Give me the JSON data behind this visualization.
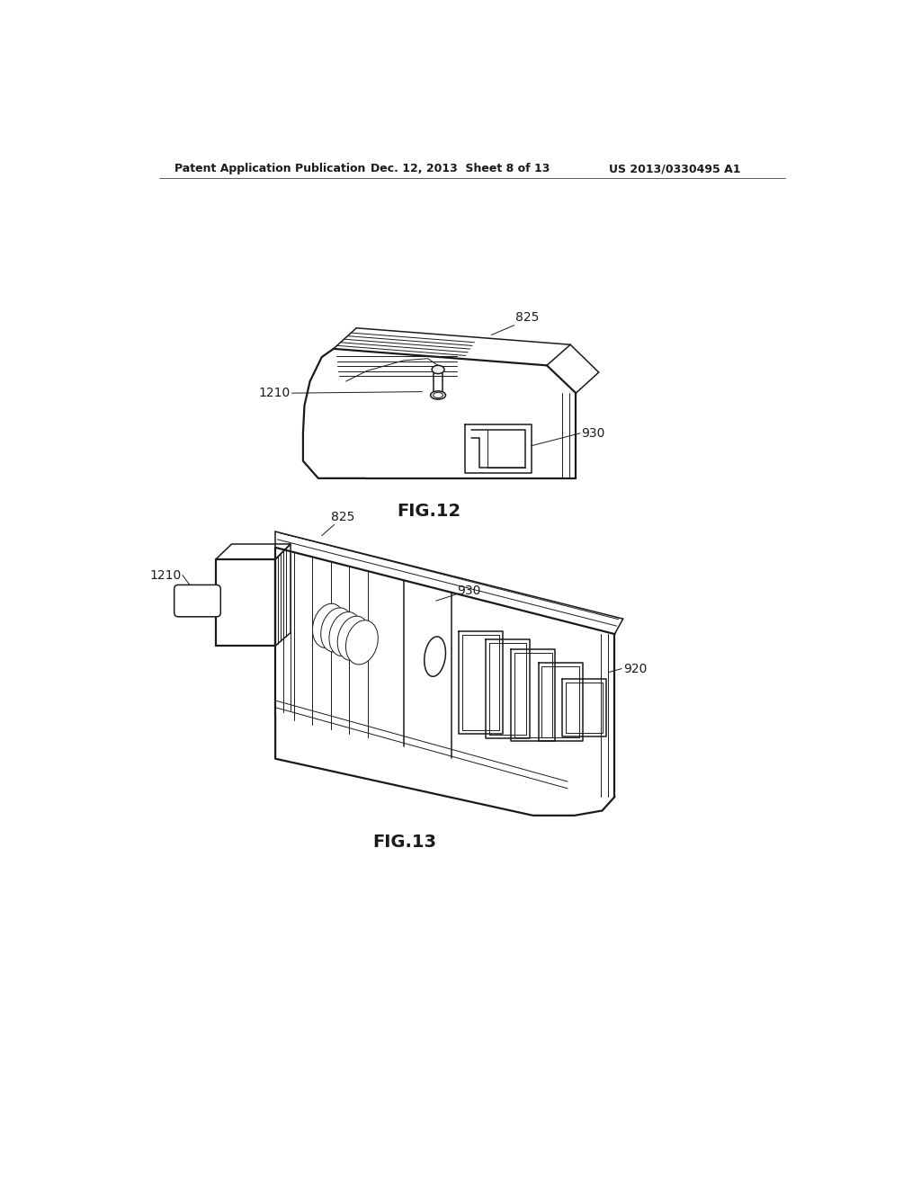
{
  "bg_color": "#ffffff",
  "line_color": "#1a1a1a",
  "header_left": "Patent Application Publication",
  "header_center": "Dec. 12, 2013  Sheet 8 of 13",
  "header_right": "US 2013/0330495 A1",
  "fig12_label": "FIG.12",
  "fig13_label": "FIG.13",
  "label_825_fig12": "825",
  "label_930_fig12": "930",
  "label_1210_fig12": "1210",
  "label_825_fig13": "825",
  "label_930_fig13": "930",
  "label_1210_fig13": "1210",
  "label_920_fig13": "920"
}
